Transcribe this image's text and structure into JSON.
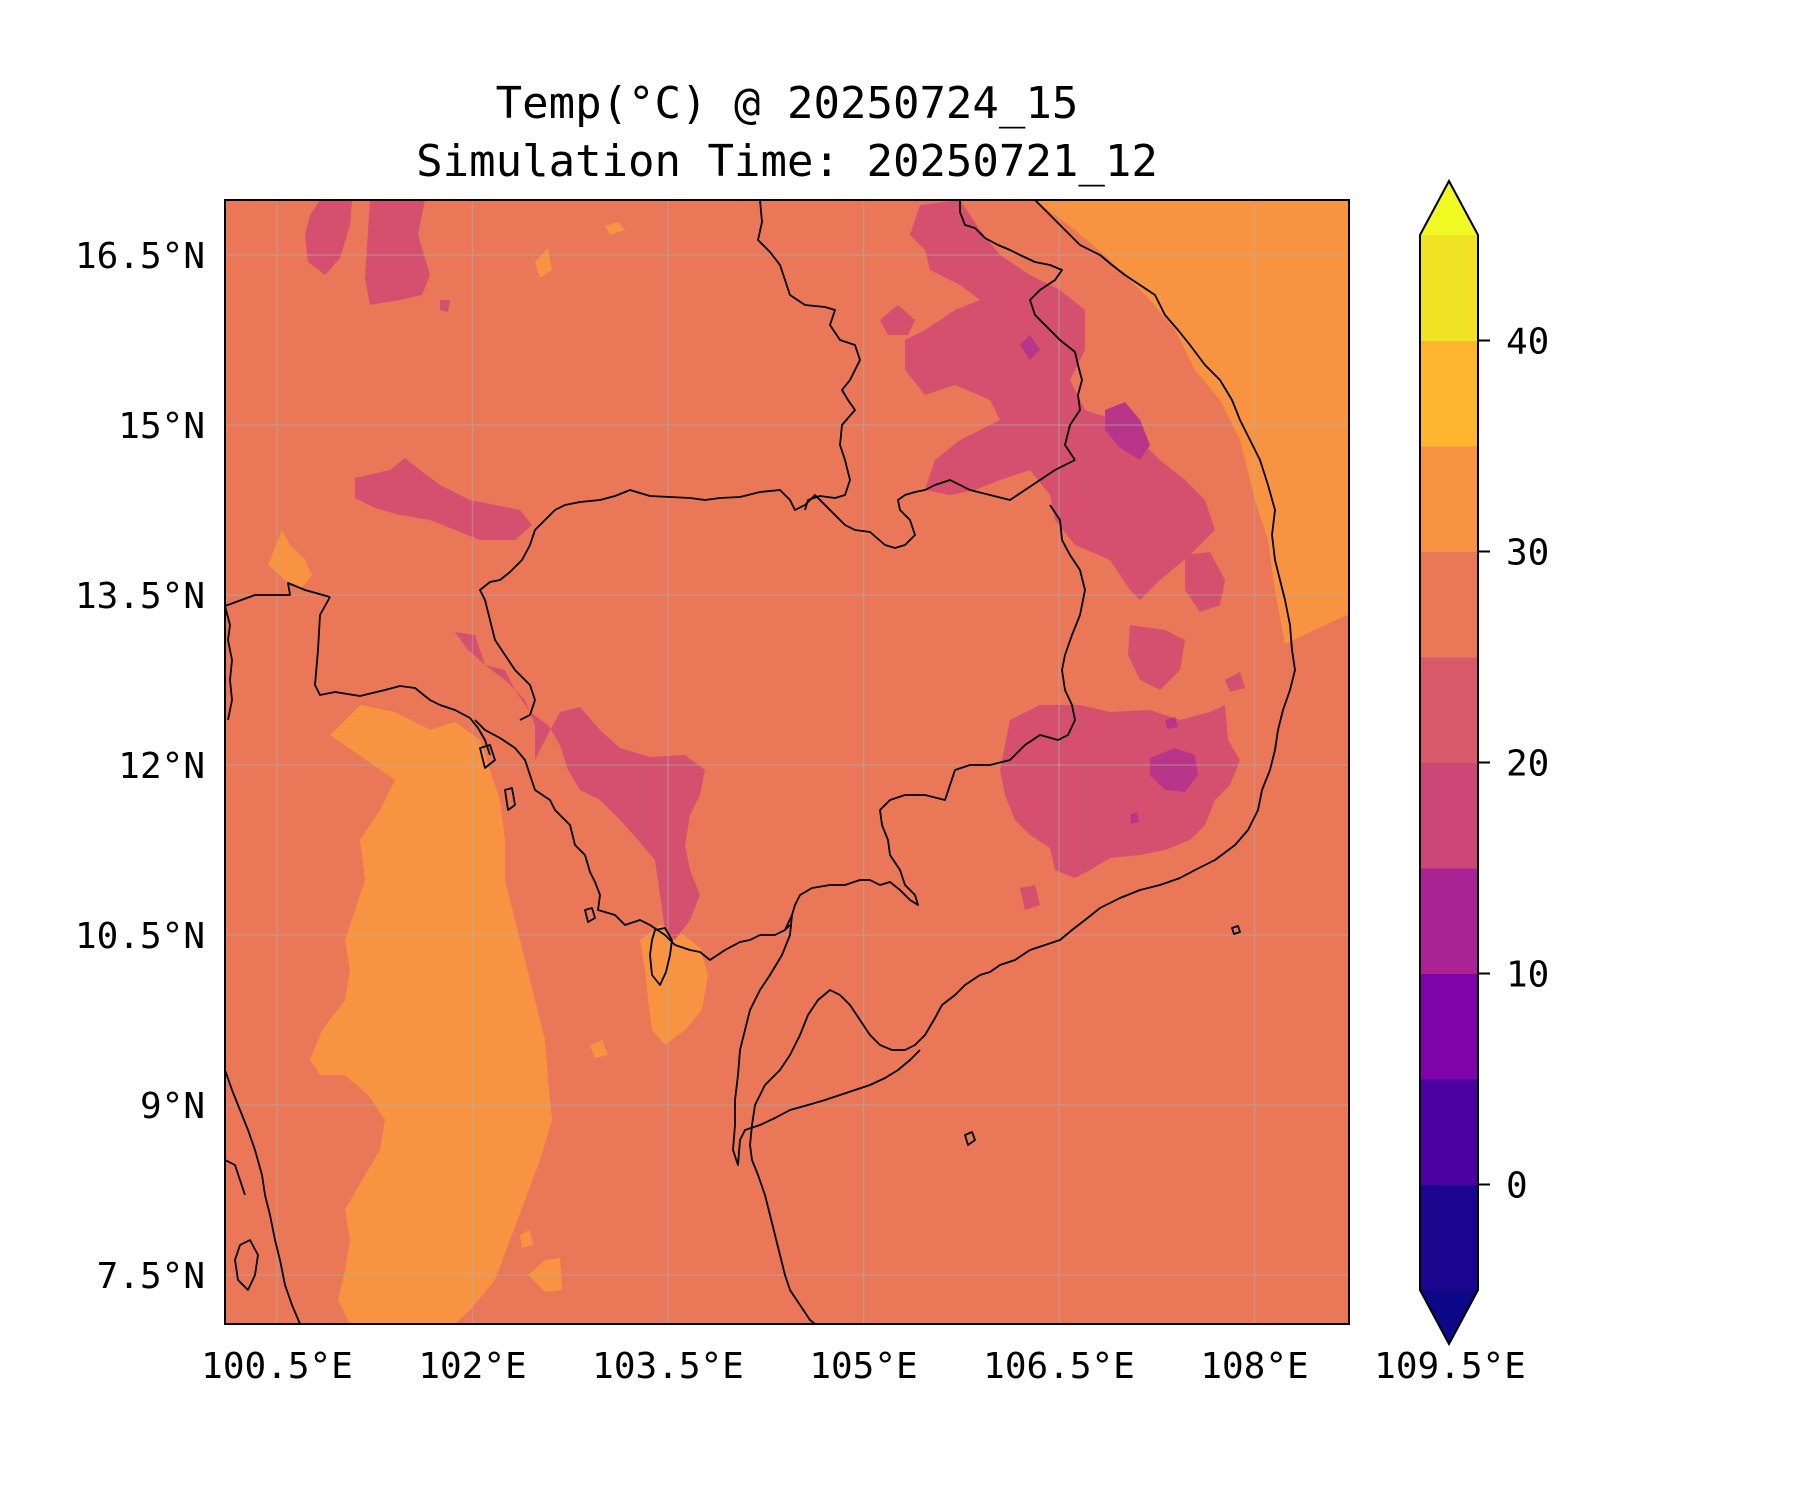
{
  "title": {
    "line1": "Temp(°C) @ 20250724_15",
    "line2": "Simulation Time: 20250721_12"
  },
  "map": {
    "x_ticks": [
      "100.5°E",
      "102°E",
      "103.5°E",
      "105°E",
      "106.5°E",
      "108°E",
      "109.5°E"
    ],
    "y_ticks": [
      "16.5°N",
      "15°N",
      "13.5°N",
      "12°N",
      "10.5°N",
      "9°N",
      "7.5°N"
    ],
    "grid": true
  },
  "colorbar": {
    "tick_labels": [
      "0",
      "10",
      "20",
      "30",
      "40"
    ],
    "levels": [
      -5,
      0,
      5,
      10,
      15,
      20,
      25,
      30,
      35,
      40,
      45
    ],
    "colors": [
      "#1d068f",
      "#4c02a1",
      "#7e03a8",
      "#a92395",
      "#cc4778",
      "#d85a6a",
      "#e97758",
      "#f89441",
      "#fdb42f",
      "#f0e323"
    ],
    "under_color": "#0d0887",
    "over_color": "#f0f921",
    "extend": "both"
  },
  "colors": {
    "dominant_field": "#e97758",
    "warm_field": "#f89441",
    "cool_field": "#d5506f",
    "coolest_patch": "#b8358a",
    "coastline": "#000000"
  }
}
